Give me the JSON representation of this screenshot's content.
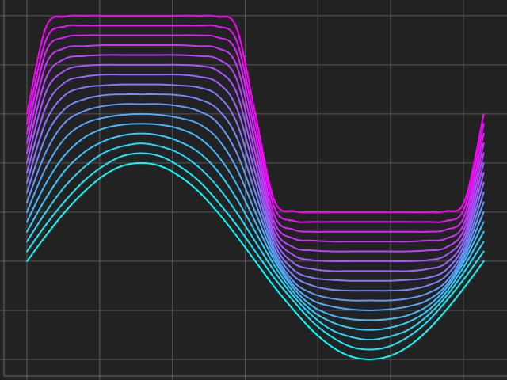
{
  "chart_data": {
    "type": "line",
    "x": [
      0,
      0.26,
      0.52,
      0.79,
      1.05,
      1.31,
      1.57,
      1.83,
      2.09,
      2.36,
      2.62,
      2.88,
      3.14,
      3.4,
      3.67,
      3.93,
      4.19,
      4.45,
      4.71,
      4.97,
      5.24,
      5.5,
      5.76,
      6.02,
      6.28
    ],
    "series": [
      {
        "color": "#00ffff",
        "values": [
          0,
          0.26,
          0.5,
          0.71,
          0.87,
          0.97,
          1,
          0.97,
          0.87,
          0.71,
          0.5,
          0.26,
          0,
          -0.26,
          -0.5,
          -0.71,
          -0.87,
          -0.97,
          -1,
          -0.97,
          -0.87,
          -0.71,
          -0.5,
          -0.26,
          0
        ]
      },
      {
        "color": "#11eeff",
        "values": [
          0.1,
          0.37,
          0.61,
          0.82,
          0.97,
          1.07,
          1.1,
          1.07,
          0.97,
          0.82,
          0.61,
          0.37,
          0.1,
          -0.17,
          -0.41,
          -0.62,
          -0.77,
          -0.87,
          -0.9,
          -0.87,
          -0.77,
          -0.62,
          -0.41,
          -0.17,
          0.1
        ]
      },
      {
        "color": "#22ddff",
        "values": [
          0.2,
          0.5,
          0.76,
          0.96,
          1.1,
          1.17,
          1.2,
          1.17,
          1.1,
          0.96,
          0.76,
          0.5,
          0.2,
          -0.1,
          -0.36,
          -0.56,
          -0.7,
          -0.77,
          -0.8,
          -0.77,
          -0.7,
          -0.56,
          -0.36,
          -0.1,
          0.2
        ]
      },
      {
        "color": "#33ccff",
        "values": [
          0.3,
          0.64,
          0.92,
          1.11,
          1.22,
          1.28,
          1.3,
          1.28,
          1.22,
          1.11,
          0.92,
          0.64,
          0.3,
          -0.04,
          -0.32,
          -0.51,
          -0.62,
          -0.68,
          -0.7,
          -0.68,
          -0.62,
          -0.51,
          -0.32,
          -0.04,
          0.3
        ]
      },
      {
        "color": "#44bbff",
        "values": [
          0.4,
          0.79,
          1.08,
          1.26,
          1.35,
          1.39,
          1.4,
          1.39,
          1.35,
          1.26,
          1.08,
          0.79,
          0.4,
          0.01,
          -0.28,
          -0.46,
          -0.55,
          -0.59,
          -0.6,
          -0.59,
          -0.55,
          -0.46,
          -0.28,
          0.01,
          0.4
        ]
      },
      {
        "color": "#55aaff",
        "values": [
          0.5,
          0.95,
          1.25,
          1.4,
          1.46,
          1.49,
          1.5,
          1.49,
          1.46,
          1.4,
          1.25,
          0.95,
          0.5,
          0.05,
          -0.25,
          -0.4,
          -0.46,
          -0.49,
          -0.5,
          -0.49,
          -0.46,
          -0.4,
          -0.25,
          0.05,
          0.5
        ]
      },
      {
        "color": "#6699ff",
        "values": [
          0.6,
          1.11,
          1.41,
          1.53,
          1.58,
          1.6,
          1.6,
          1.6,
          1.58,
          1.53,
          1.41,
          1.11,
          0.6,
          0.09,
          -0.21,
          -0.33,
          -0.38,
          -0.4,
          -0.4,
          -0.4,
          -0.38,
          -0.33,
          -0.21,
          0.09,
          0.6
        ]
      },
      {
        "color": "#7788ff",
        "values": [
          0.7,
          1.27,
          1.55,
          1.65,
          1.69,
          1.7,
          1.7,
          1.7,
          1.69,
          1.65,
          1.55,
          1.27,
          0.7,
          0.13,
          -0.15,
          -0.25,
          -0.29,
          -0.3,
          -0.3,
          -0.3,
          -0.29,
          -0.25,
          -0.15,
          0.13,
          0.7
        ]
      },
      {
        "color": "#8877ff",
        "values": [
          0.8,
          1.42,
          1.69,
          1.77,
          1.79,
          1.8,
          1.8,
          1.8,
          1.79,
          1.77,
          1.69,
          1.42,
          0.8,
          0.18,
          -0.09,
          -0.17,
          -0.19,
          -0.2,
          -0.2,
          -0.2,
          -0.19,
          -0.17,
          -0.09,
          0.18,
          0.8
        ]
      },
      {
        "color": "#9966ff",
        "values": [
          0.9,
          1.57,
          1.82,
          1.88,
          1.9,
          1.9,
          1.9,
          1.9,
          1.9,
          1.88,
          1.82,
          1.57,
          0.9,
          0.23,
          -0.02,
          -0.08,
          -0.1,
          -0.1,
          -0.1,
          -0.1,
          -0.1,
          -0.08,
          -0.02,
          0.23,
          0.9
        ]
      },
      {
        "color": "#aa55ff",
        "values": [
          1,
          1.72,
          1.94,
          1.99,
          2,
          2,
          2,
          2,
          2,
          1.99,
          1.94,
          1.72,
          1,
          0.28,
          0.06,
          0.01,
          0,
          0,
          0,
          0,
          0,
          0.01,
          0.06,
          0.28,
          1
        ]
      },
      {
        "color": "#bb44ff",
        "values": [
          1.1,
          1.86,
          2.06,
          2.09,
          2.1,
          2.1,
          2.1,
          2.1,
          2.1,
          2.09,
          2.06,
          1.86,
          1.1,
          0.34,
          0.14,
          0.11,
          0.1,
          0.1,
          0.1,
          0.1,
          0.1,
          0.11,
          0.14,
          0.34,
          1.1
        ]
      },
      {
        "color": "#cc33ff",
        "values": [
          1.2,
          2,
          2.17,
          2.19,
          2.2,
          2.2,
          2.2,
          2.2,
          2.2,
          2.19,
          2.17,
          2,
          1.2,
          0.4,
          0.23,
          0.21,
          0.2,
          0.2,
          0.2,
          0.2,
          0.2,
          0.21,
          0.23,
          0.4,
          1.2
        ]
      },
      {
        "color": "#dd22ff",
        "values": [
          1.3,
          2.13,
          2.28,
          2.3,
          2.3,
          2.3,
          2.3,
          2.3,
          2.3,
          2.3,
          2.28,
          2.13,
          1.3,
          0.47,
          0.32,
          0.3,
          0.3,
          0.3,
          0.3,
          0.3,
          0.3,
          0.3,
          0.32,
          0.47,
          1.3
        ]
      },
      {
        "color": "#ee11ff",
        "values": [
          1.4,
          2.25,
          2.39,
          2.4,
          2.4,
          2.4,
          2.4,
          2.4,
          2.4,
          2.4,
          2.39,
          2.25,
          1.4,
          0.55,
          0.41,
          0.4,
          0.4,
          0.4,
          0.4,
          0.4,
          0.4,
          0.4,
          0.41,
          0.55,
          1.4
        ]
      },
      {
        "color": "#ff00ff",
        "values": [
          1.5,
          2.38,
          2.49,
          2.5,
          2.5,
          2.5,
          2.5,
          2.5,
          2.5,
          2.5,
          2.49,
          2.38,
          1.5,
          0.62,
          0.51,
          0.5,
          0.5,
          0.5,
          0.5,
          0.5,
          0.5,
          0.5,
          0.51,
          0.62,
          1.5
        ]
      }
    ],
    "xlim": [
      -0.37,
      6.6
    ],
    "ylim": [
      -1.21,
      2.66
    ],
    "xticks": [
      0,
      1,
      2,
      3,
      4,
      5,
      6
    ],
    "yticks": [
      -1,
      -0.5,
      0,
      0.5,
      1,
      1.5,
      2,
      2.5
    ],
    "grid": true
  }
}
